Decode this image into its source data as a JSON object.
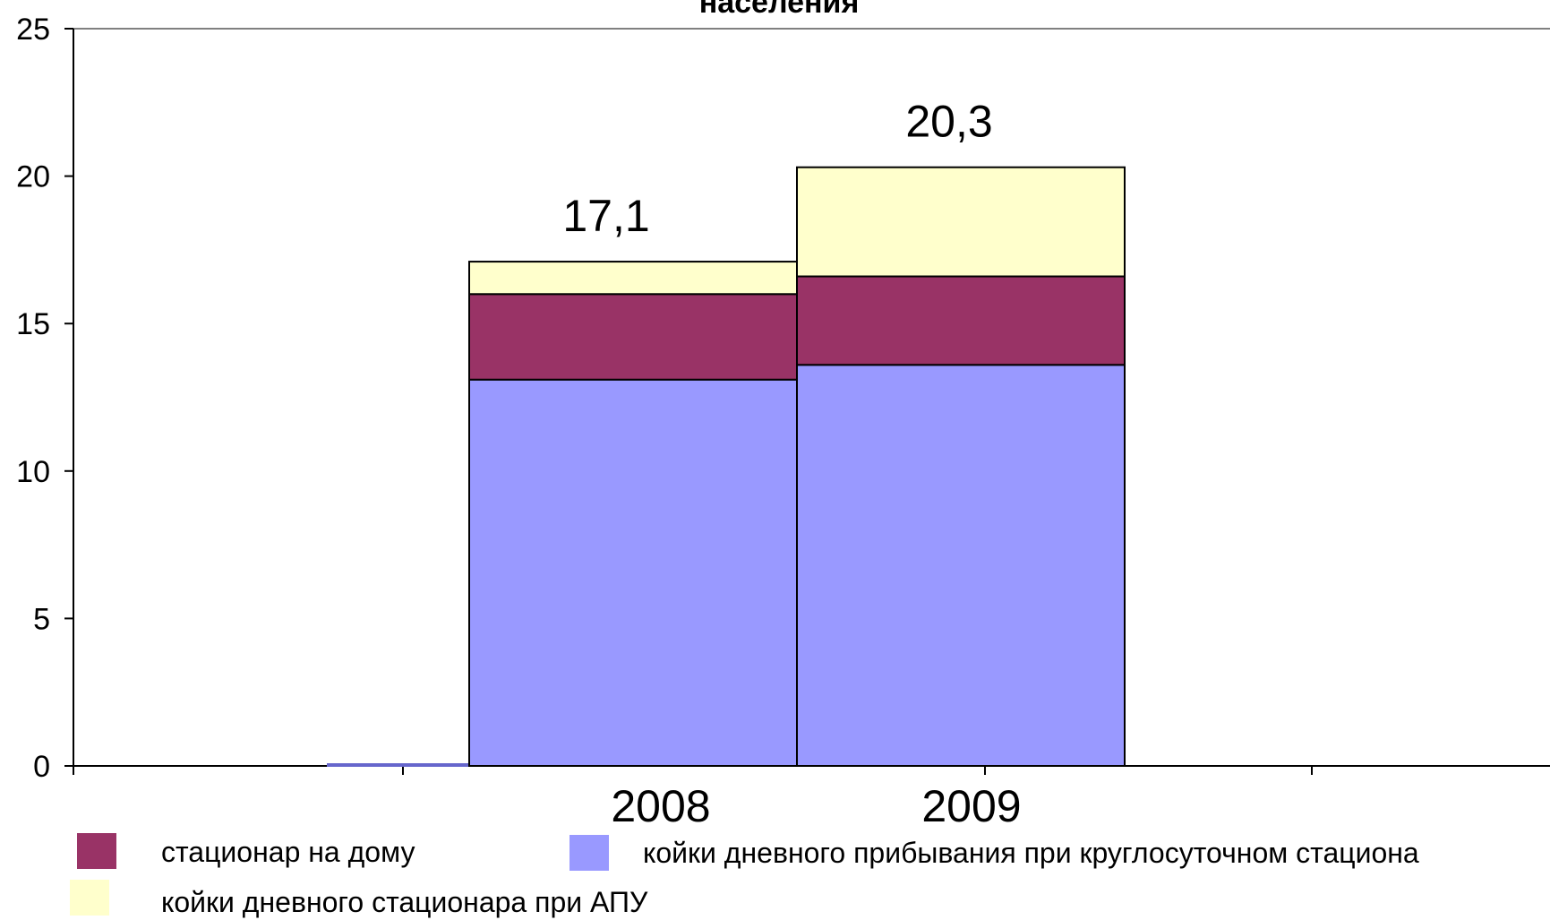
{
  "chart_data": {
    "type": "bar",
    "stacked": true,
    "title": "населения",
    "categories": [
      "2008",
      "2009"
    ],
    "series": [
      {
        "name": "койки дневного прибывания при круглосуточном стациона",
        "color": "#9999ff",
        "values": [
          13.1,
          13.6
        ]
      },
      {
        "name": "стационар на дому",
        "color": "#993366",
        "values": [
          2.9,
          3.0
        ]
      },
      {
        "name": "койки дневного стационара при АПУ",
        "color": "#ffffcc",
        "values": [
          1.1,
          3.7
        ]
      }
    ],
    "totals": [
      "17,1",
      "20,3"
    ],
    "ylim": [
      0,
      25
    ],
    "yticks": [
      0,
      5,
      10,
      15,
      20,
      25
    ],
    "grid": false,
    "legend": "bottom"
  }
}
